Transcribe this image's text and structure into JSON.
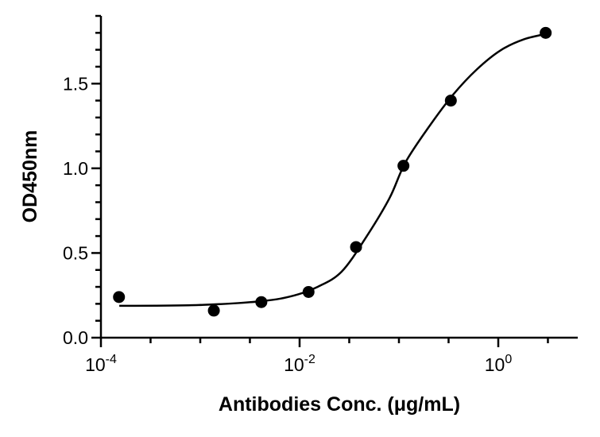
{
  "chart_data": {
    "type": "scatter",
    "x_label": "Antibodies Conc. (μg/mL)",
    "y_label": "OD450nm",
    "log_x": true,
    "xlim": [
      0.0001,
      6.31
    ],
    "ylim": [
      0,
      1.9
    ],
    "xticks": [
      {
        "value": 0.0001,
        "label": "10",
        "exp": "-4"
      },
      {
        "value": 0.01,
        "label": "10",
        "exp": "-2"
      },
      {
        "value": 1,
        "label": "10",
        "exp": "0"
      }
    ],
    "xminorticks": [
      0.000316,
      0.001,
      0.00316,
      0.0316,
      0.1,
      0.316,
      3.16
    ],
    "yticks": [
      {
        "value": 0,
        "label": "0.0"
      },
      {
        "value": 0.5,
        "label": "0.5"
      },
      {
        "value": 1.0,
        "label": "1.0"
      },
      {
        "value": 1.5,
        "label": "1.5"
      }
    ],
    "yminorticks": [
      0.1,
      0.2,
      0.3,
      0.4,
      0.6,
      0.7,
      0.8,
      0.9,
      1.1,
      1.2,
      1.3,
      1.4,
      1.6,
      1.7,
      1.8,
      1.9
    ],
    "color": "#000000",
    "points": {
      "x": [
        0.000152,
        0.00137,
        0.00412,
        0.0123,
        0.037,
        0.111,
        0.333,
        3
      ],
      "y": [
        0.24,
        0.16,
        0.21,
        0.27,
        0.535,
        1.015,
        1.4,
        1.8
      ]
    },
    "curve": {
      "x": [
        0.000153,
        0.000964,
        0.0042,
        0.00879,
        0.0153,
        0.0265,
        0.0461,
        0.0802,
        0.116,
        0.201,
        0.35,
        0.608,
        1.057,
        1.837,
        3.19
      ],
      "y": [
        0.188,
        0.193,
        0.216,
        0.249,
        0.301,
        0.39,
        0.588,
        0.823,
        1.034,
        1.246,
        1.434,
        1.584,
        1.697,
        1.763,
        1.796
      ]
    }
  }
}
